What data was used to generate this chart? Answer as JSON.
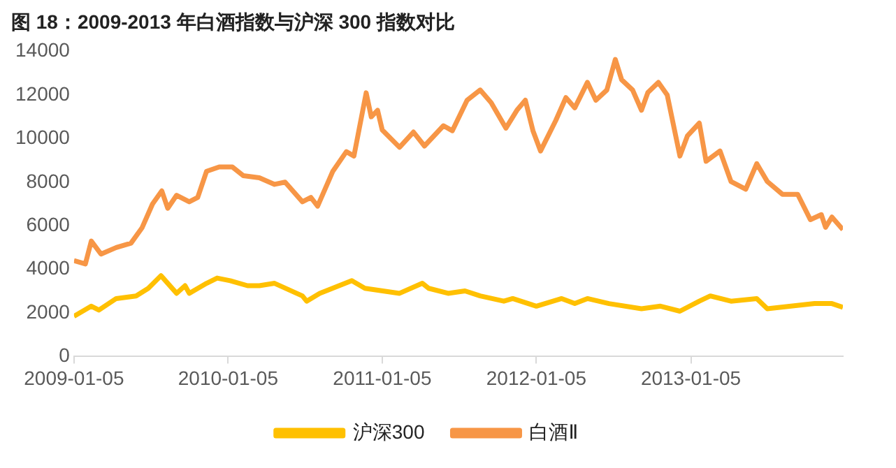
{
  "chart_data": {
    "type": "line",
    "title": "图 18：2009-2013 年白酒指数与沪深 300 指数对比",
    "legend": "bottom",
    "marker": "none",
    "grid": false,
    "xlim": [
      "2009-01-05",
      "2013-12-31"
    ],
    "xticks": [
      "2009-01-05",
      "2010-01-05",
      "2011-01-05",
      "2012-01-05",
      "2013-01-05"
    ],
    "ylim": [
      0,
      14000
    ],
    "yticks": [
      0,
      2000,
      4000,
      6000,
      8000,
      10000,
      12000,
      14000
    ],
    "series": [
      {
        "name": "沪深300",
        "color": "#ffc000",
        "x": [
          "2009-01-05",
          "2009-02-15",
          "2009-03-05",
          "2009-04-15",
          "2009-06-01",
          "2009-06-30",
          "2009-07-30",
          "2009-09-05",
          "2009-09-25",
          "2009-10-05",
          "2009-11-15",
          "2009-12-10",
          "2010-01-10",
          "2010-02-20",
          "2010-03-20",
          "2010-04-25",
          "2010-06-30",
          "2010-07-10",
          "2010-08-10",
          "2010-10-25",
          "2010-11-25",
          "2011-02-15",
          "2011-04-10",
          "2011-04-25",
          "2011-06-10",
          "2011-07-20",
          "2011-08-25",
          "2011-10-20",
          "2011-11-10",
          "2012-01-05",
          "2012-03-05",
          "2012-04-05",
          "2012-05-05",
          "2012-06-25",
          "2012-09-10",
          "2012-10-25",
          "2012-12-10",
          "2013-01-25",
          "2013-02-20",
          "2013-04-10",
          "2013-06-10",
          "2013-07-05",
          "2013-08-30",
          "2013-10-25",
          "2013-12-05",
          "2013-12-31"
        ],
        "values": [
          1850,
          2310,
          2130,
          2660,
          2780,
          3130,
          3710,
          2900,
          3250,
          2900,
          3360,
          3600,
          3480,
          3250,
          3250,
          3360,
          2780,
          2540,
          2900,
          3480,
          3130,
          2900,
          3360,
          3130,
          2900,
          3010,
          2780,
          2540,
          2660,
          2310,
          2660,
          2430,
          2660,
          2430,
          2190,
          2310,
          2080,
          2540,
          2780,
          2540,
          2660,
          2190,
          2310,
          2430,
          2430,
          2260
        ]
      },
      {
        "name": "白酒Ⅱ",
        "color": "#f79646",
        "x": [
          "2009-01-05",
          "2009-02-01",
          "2009-02-15",
          "2009-03-10",
          "2009-04-15",
          "2009-05-20",
          "2009-06-15",
          "2009-07-10",
          "2009-08-01",
          "2009-08-15",
          "2009-09-05",
          "2009-10-05",
          "2009-10-25",
          "2009-11-15",
          "2009-12-15",
          "2010-01-15",
          "2010-02-10",
          "2010-03-20",
          "2010-04-25",
          "2010-05-20",
          "2010-06-30",
          "2010-07-20",
          "2010-08-05",
          "2010-09-10",
          "2010-10-12",
          "2010-10-30",
          "2010-11-28",
          "2010-12-10",
          "2010-12-25",
          "2011-01-05",
          "2011-02-15",
          "2011-03-20",
          "2011-04-15",
          "2011-05-30",
          "2011-06-20",
          "2011-07-25",
          "2011-08-25",
          "2011-09-20",
          "2011-10-25",
          "2011-11-20",
          "2011-12-10",
          "2011-12-28",
          "2012-01-15",
          "2012-02-20",
          "2012-03-15",
          "2012-04-05",
          "2012-05-05",
          "2012-05-25",
          "2012-06-20",
          "2012-07-10",
          "2012-07-25",
          "2012-08-20",
          "2012-09-10",
          "2012-09-25",
          "2012-10-20",
          "2012-11-10",
          "2012-12-10",
          "2012-12-28",
          "2013-01-25",
          "2013-02-10",
          "2013-03-15",
          "2013-04-10",
          "2013-05-15",
          "2013-06-10",
          "2013-07-05",
          "2013-08-10",
          "2013-09-15",
          "2013-10-15",
          "2013-11-10",
          "2013-11-20",
          "2013-12-05",
          "2013-12-31"
        ],
        "values": [
          4400,
          4250,
          5300,
          4700,
          5000,
          5200,
          5900,
          7000,
          7600,
          6800,
          7400,
          7100,
          7300,
          8500,
          8700,
          8700,
          8300,
          8200,
          7900,
          8000,
          7100,
          7300,
          6900,
          8500,
          9400,
          9200,
          12100,
          11000,
          11300,
          10400,
          9600,
          10300,
          9660,
          10590,
          10360,
          11760,
          12230,
          11650,
          10480,
          11300,
          11760,
          10360,
          9430,
          10830,
          11880,
          11410,
          12580,
          11760,
          12230,
          13630,
          12700,
          12230,
          11300,
          12110,
          12580,
          12000,
          9200,
          10130,
          10710,
          8960,
          9430,
          8030,
          7680,
          8850,
          8030,
          7440,
          7440,
          6280,
          6510,
          5930,
          6400,
          5820
        ]
      }
    ]
  }
}
